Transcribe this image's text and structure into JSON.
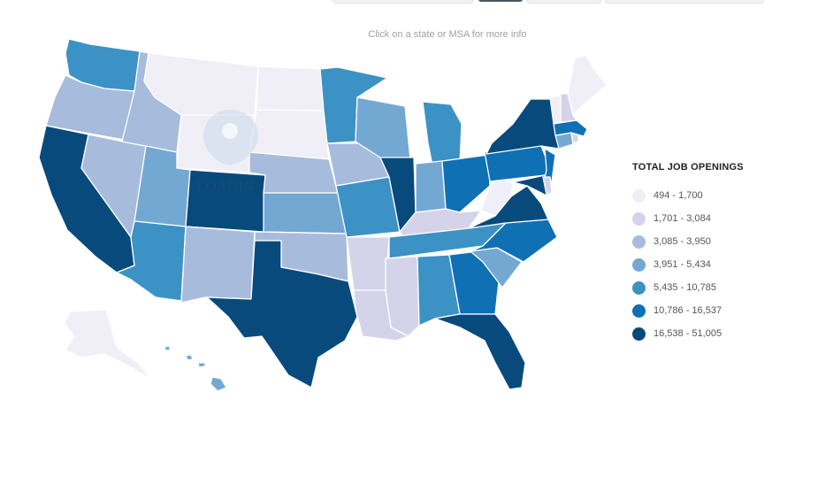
{
  "hint": "Click on a state or MSA for more info",
  "loading_text": "LOADIN",
  "legend": {
    "title": "TOTAL JOB OPENINGS",
    "items": [
      {
        "label": "494 - 1,700",
        "color": "#f0eff7"
      },
      {
        "label": "1,701 - 3,084",
        "color": "#d5d3ea"
      },
      {
        "label": "3,085 - 3,950",
        "color": "#a7bcdc"
      },
      {
        "label": "3,951 - 5,434",
        "color": "#73a8d2"
      },
      {
        "label": "5,435 - 10,785",
        "color": "#3c92c4"
      },
      {
        "label": "10,786 - 16,537",
        "color": "#0f70b4"
      },
      {
        "label": "16,538 - 51,005",
        "color": "#084a7b"
      }
    ]
  },
  "states": [
    {
      "id": "WA",
      "bin": 4
    },
    {
      "id": "OR",
      "bin": 2
    },
    {
      "id": "CA",
      "bin": 6
    },
    {
      "id": "NV",
      "bin": 2
    },
    {
      "id": "ID",
      "bin": 2
    },
    {
      "id": "MT",
      "bin": 0
    },
    {
      "id": "WY",
      "bin": 0
    },
    {
      "id": "UT",
      "bin": 3
    },
    {
      "id": "AZ",
      "bin": 4
    },
    {
      "id": "CO",
      "bin": 6
    },
    {
      "id": "NM",
      "bin": 2
    },
    {
      "id": "ND",
      "bin": 0
    },
    {
      "id": "SD",
      "bin": 0
    },
    {
      "id": "NE",
      "bin": 2
    },
    {
      "id": "KS",
      "bin": 3
    },
    {
      "id": "OK",
      "bin": 2
    },
    {
      "id": "TX",
      "bin": 6
    },
    {
      "id": "MN",
      "bin": 4
    },
    {
      "id": "IA",
      "bin": 2
    },
    {
      "id": "MO",
      "bin": 4
    },
    {
      "id": "AR",
      "bin": 1
    },
    {
      "id": "LA",
      "bin": 1
    },
    {
      "id": "WI",
      "bin": 3
    },
    {
      "id": "IL",
      "bin": 6
    },
    {
      "id": "MI",
      "bin": 4
    },
    {
      "id": "IN",
      "bin": 3
    },
    {
      "id": "OH",
      "bin": 5
    },
    {
      "id": "KY",
      "bin": 1
    },
    {
      "id": "TN",
      "bin": 4
    },
    {
      "id": "MS",
      "bin": 1
    },
    {
      "id": "AL",
      "bin": 4
    },
    {
      "id": "GA",
      "bin": 5
    },
    {
      "id": "FL",
      "bin": 6
    },
    {
      "id": "SC",
      "bin": 3
    },
    {
      "id": "NC",
      "bin": 5
    },
    {
      "id": "VA",
      "bin": 6
    },
    {
      "id": "WV",
      "bin": 0
    },
    {
      "id": "PA",
      "bin": 5
    },
    {
      "id": "NY",
      "bin": 6
    },
    {
      "id": "NJ",
      "bin": 5
    },
    {
      "id": "MD",
      "bin": 6
    },
    {
      "id": "DE",
      "bin": 1
    },
    {
      "id": "CT",
      "bin": 3
    },
    {
      "id": "RI",
      "bin": 1
    },
    {
      "id": "MA",
      "bin": 5
    },
    {
      "id": "VT",
      "bin": 0
    },
    {
      "id": "NH",
      "bin": 1
    },
    {
      "id": "ME",
      "bin": 0
    },
    {
      "id": "AK",
      "bin": 0
    },
    {
      "id": "HI",
      "bin": 3
    }
  ]
}
